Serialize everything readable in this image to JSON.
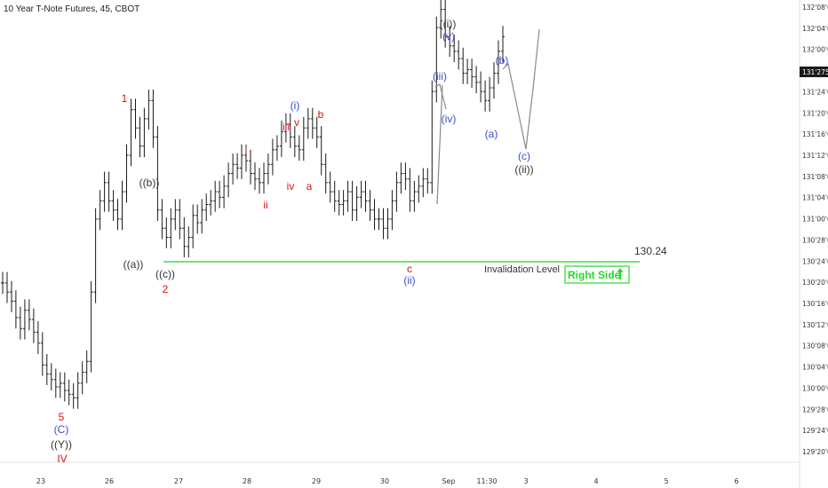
{
  "chart_data": {
    "type": "line",
    "title": "10 Year T-Note Futures, 45, CBOT",
    "ylim_ticks": [
      "129'20'0",
      "129'24'0",
      "129'28'0",
      "130'00'0",
      "130'04'0",
      "130'08'0",
      "130'12'0",
      "130'16'0",
      "130'20'0",
      "130'24'0",
      "130'28'0",
      "131'00'0",
      "131'04'0",
      "131'08'0",
      "131'12'0",
      "131'16'0",
      "131'20'0",
      "131'24'0",
      "131'28'0",
      "132'00'0",
      "132'04'0",
      "132'08'0"
    ],
    "x_ticks": [
      "23",
      "26",
      "27",
      "28",
      "29",
      "30",
      "Sep",
      "11:30",
      "3",
      "4",
      "5",
      "6"
    ],
    "last_price_label": "131'275",
    "series": [
      {
        "type": "ohlc",
        "values": [
          130.55,
          130.5,
          130.45,
          130.36,
          130.3,
          130.4,
          130.35,
          130.28,
          130.22,
          130.1,
          130.05,
          130.02,
          129.98,
          130.0,
          129.96,
          129.94,
          129.92,
          130.0,
          130.06,
          130.12,
          130.5,
          130.9,
          131.0,
          131.1,
          131.0,
          130.95,
          130.9,
          131.05,
          131.25,
          131.5,
          131.4,
          131.3,
          131.45,
          131.55,
          131.35,
          130.95,
          130.85,
          130.8,
          130.9,
          130.95,
          130.85,
          130.75,
          130.8,
          130.92,
          130.88,
          130.95,
          130.98,
          131.0,
          131.05,
          131.02,
          131.08,
          131.15,
          131.2,
          131.18,
          131.25,
          131.22,
          131.15,
          131.12,
          131.1,
          131.15,
          131.2,
          131.28,
          131.3,
          131.38,
          131.42,
          131.35,
          131.3,
          131.28,
          131.4,
          131.45,
          131.4,
          131.35,
          131.2,
          131.1,
          131.05,
          131.0,
          130.98,
          131.0,
          131.05,
          130.95,
          131.02,
          131.05,
          131.0,
          130.95,
          130.9,
          130.9,
          130.85,
          130.9,
          131.0,
          131.1,
          131.15,
          131.12,
          131.0,
          131.05,
          131.08,
          131.12,
          131.1,
          131.6,
          131.95,
          132.05,
          131.9,
          131.85,
          131.82,
          131.78,
          131.7,
          131.72,
          131.68,
          131.65,
          131.6,
          131.55,
          131.62,
          131.7,
          131.82,
          131.9
        ]
      },
      {
        "type": "line",
        "values": [
          131.9,
          131.75,
          131.98,
          131.38,
          132.1
        ]
      }
    ],
    "invalidation_level": "130.24",
    "invalidation_label": "Invalidation Level",
    "badge": "Right Side",
    "wave_labels": [
      {
        "text": "1",
        "color": "#e0120c"
      },
      {
        "text": "2",
        "color": "#e0120c"
      },
      {
        "text": "((a))",
        "color": "#333333"
      },
      {
        "text": "((b))",
        "color": "#333333"
      },
      {
        "text": "((c))",
        "color": "#333333"
      },
      {
        "text": "5",
        "color": "#e0120c"
      },
      {
        "text": "(C)",
        "color": "#3d4bd6"
      },
      {
        "text": "((Y))",
        "color": "#333333"
      },
      {
        "text": "IV",
        "color": "#e0120c"
      },
      {
        "text": "i",
        "color": "#e0120c"
      },
      {
        "text": "ii",
        "color": "#e0120c"
      },
      {
        "text": "iii",
        "color": "#e0120c"
      },
      {
        "text": "iv",
        "color": "#e0120c"
      },
      {
        "text": "v",
        "color": "#e0120c"
      },
      {
        "text": "(i)",
        "color": "#3d4bd6"
      },
      {
        "text": "a",
        "color": "#e0120c"
      },
      {
        "text": "b",
        "color": "#e0120c"
      },
      {
        "text": "c",
        "color": "#e0120c"
      },
      {
        "text": "(ii)",
        "color": "#3d4bd6"
      },
      {
        "text": "(iii)",
        "color": "#3d4bd6"
      },
      {
        "text": "(iv)",
        "color": "#3d4bd6"
      },
      {
        "text": "(v)",
        "color": "#3d4bd6"
      },
      {
        "text": "((i))",
        "color": "#333333"
      },
      {
        "text": "(a)",
        "color": "#3d4bd6"
      },
      {
        "text": "(b)",
        "color": "#3d4bd6"
      },
      {
        "text": "(c)",
        "color": "#3d4bd6"
      },
      {
        "text": "((ii))",
        "color": "#333333"
      }
    ]
  },
  "colors": {
    "bars": "#1a1a1a",
    "projection": "#8a8a8a",
    "invalidation": "#40e040",
    "badge_border": "#2bd62b",
    "axis_line": "#cfcfcf"
  }
}
